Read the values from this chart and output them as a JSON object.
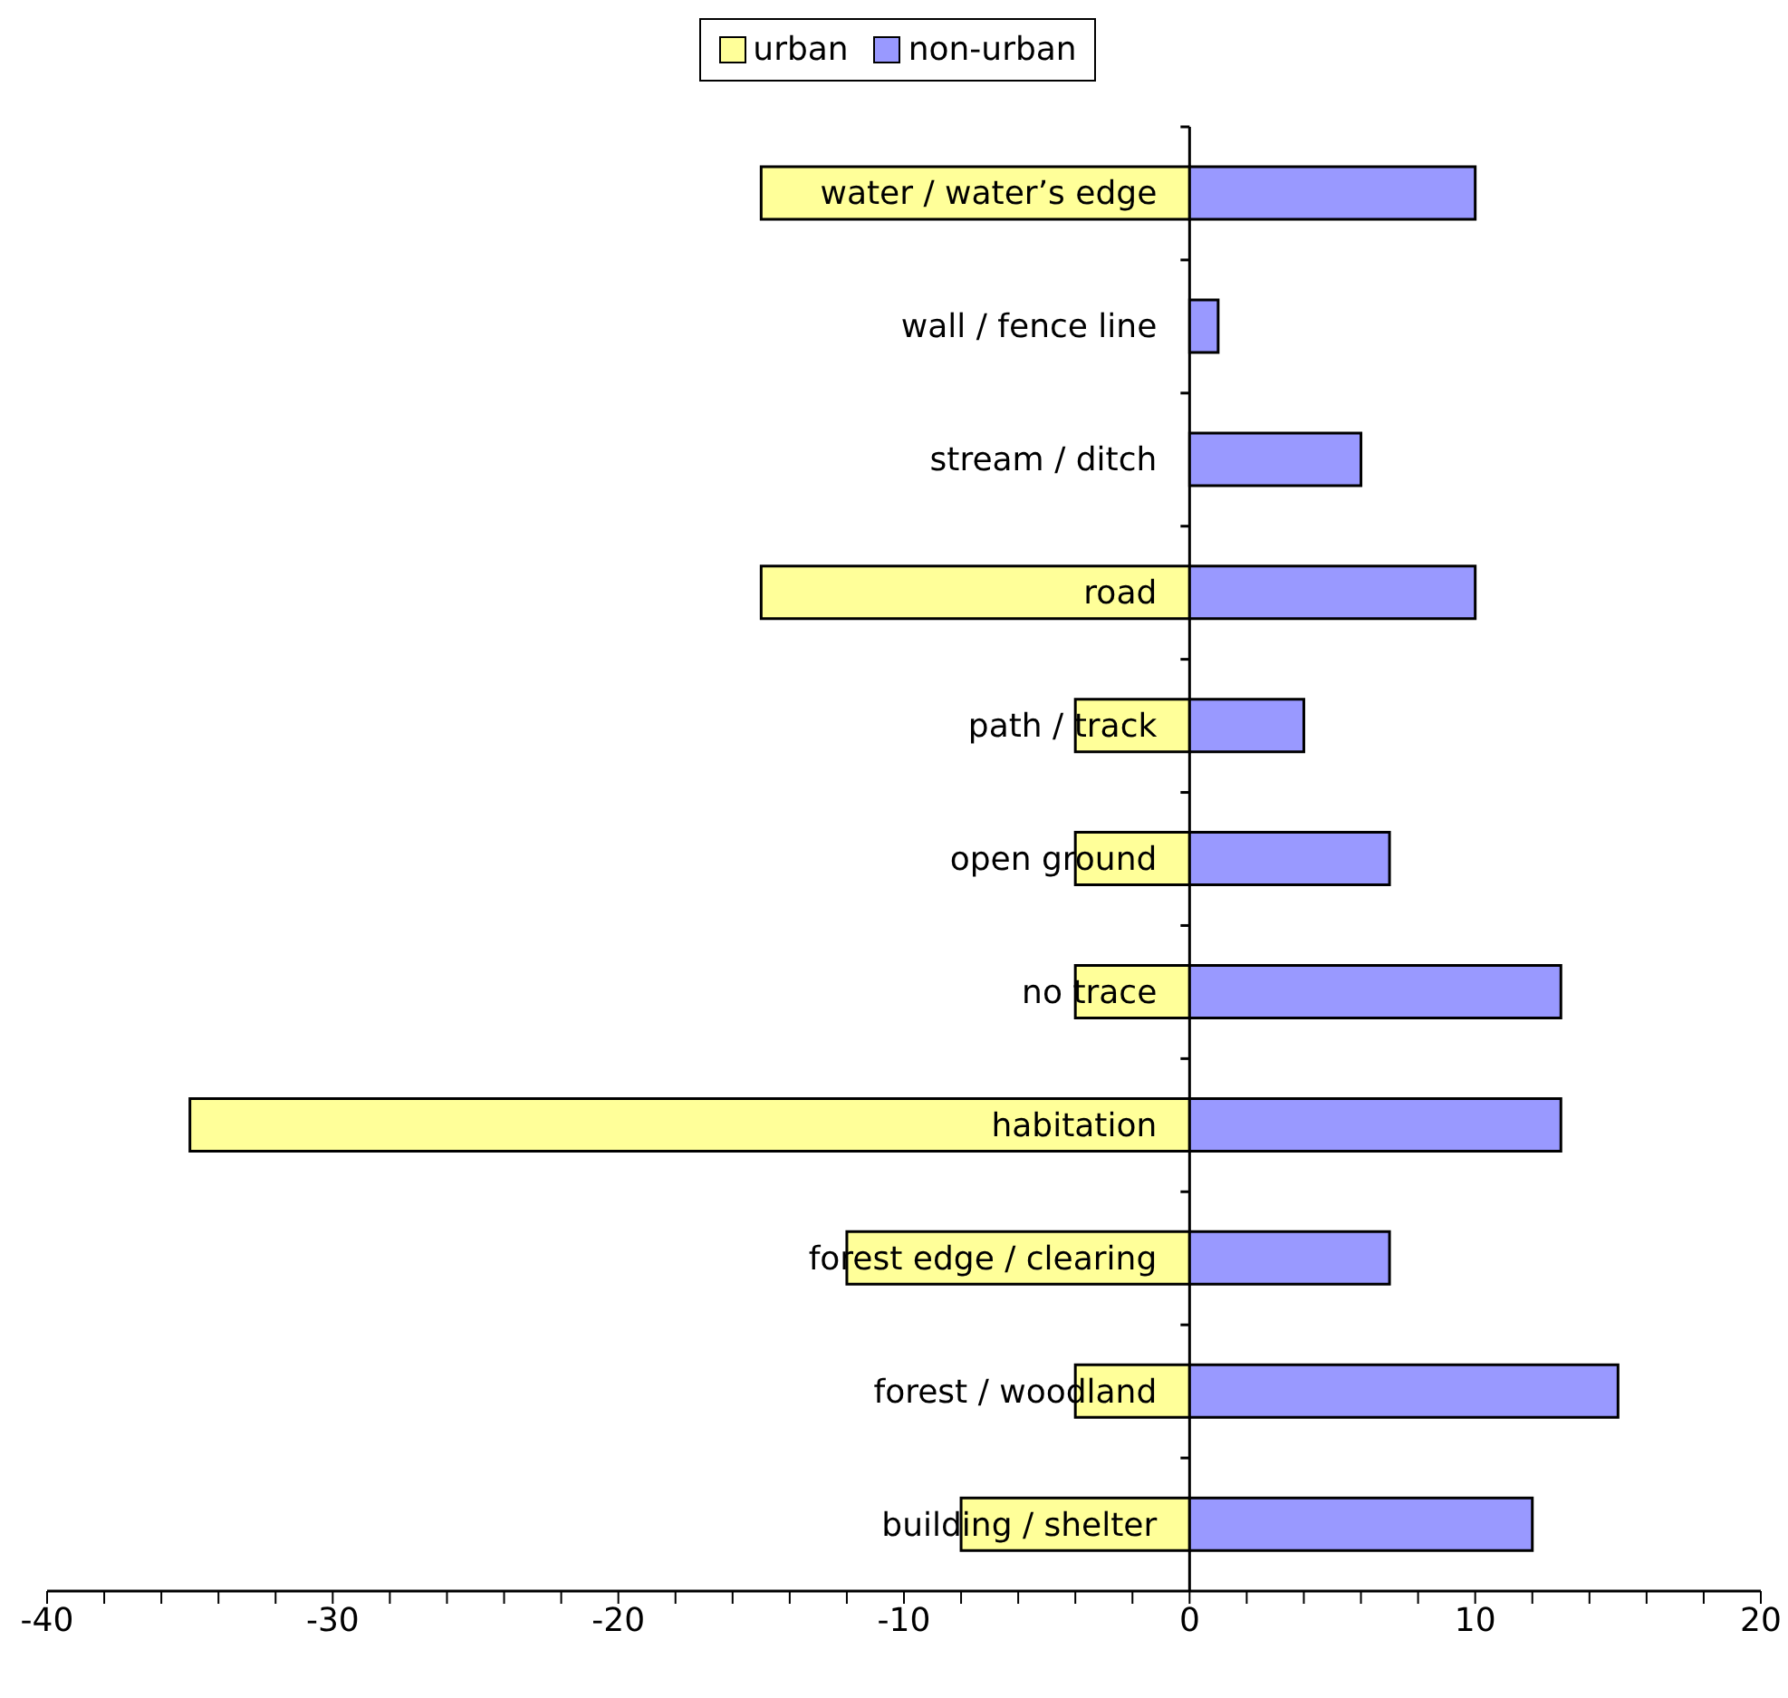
{
  "chart_data": {
    "type": "bar",
    "orientation": "horizontal",
    "stacked": true,
    "categories": [
      "water / water’s edge",
      "wall / fence line",
      "stream / ditch",
      "road",
      "path / track",
      "open ground",
      "no trace",
      "habitation",
      "forest edge / clearing",
      "forest / woodland",
      "building / shelter"
    ],
    "series": [
      {
        "name": "urban",
        "color": "#ffff99",
        "values": [
          -15,
          0,
          0,
          -15,
          -4,
          -4,
          -4,
          -35,
          -12,
          -4,
          -8
        ]
      },
      {
        "name": "non-urban",
        "color": "#9999ff",
        "values": [
          10,
          1,
          6,
          10,
          4,
          7,
          13,
          13,
          7,
          15,
          12
        ]
      }
    ],
    "xlim": [
      -40,
      20
    ],
    "xticks": [
      -40,
      {
        "value": -38,
        "label": null
      },
      {
        "value": -36,
        "label": null
      },
      {
        "value": -34,
        "label": null
      },
      {
        "value": -32,
        "label": null
      },
      -30,
      {
        "value": -28,
        "label": null
      },
      {
        "value": -26,
        "label": null
      },
      {
        "value": -24,
        "label": null
      },
      {
        "value": -22,
        "label": null
      },
      -20,
      {
        "value": -18,
        "label": null
      },
      {
        "value": -16,
        "label": null
      },
      {
        "value": -14,
        "label": null
      },
      {
        "value": -12,
        "label": null
      },
      -10,
      {
        "value": -8,
        "label": null
      },
      {
        "value": -6,
        "label": null
      },
      {
        "value": -4,
        "label": null
      },
      {
        "value": -2,
        "label": null
      },
      0,
      {
        "value": 2,
        "label": null
      },
      {
        "value": 4,
        "label": null
      },
      {
        "value": 6,
        "label": null
      },
      {
        "value": 8,
        "label": null
      },
      10,
      {
        "value": 12,
        "label": null
      },
      {
        "value": 14,
        "label": null
      },
      {
        "value": 16,
        "label": null
      },
      {
        "value": 18,
        "label": null
      },
      20
    ],
    "legend": "top",
    "grid": false
  }
}
